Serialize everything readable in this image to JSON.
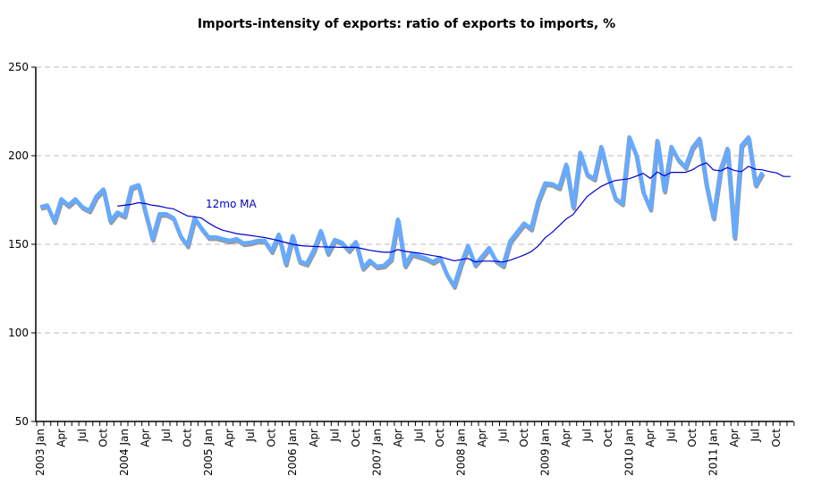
{
  "chart_data": {
    "type": "line",
    "title": "Imports-intensity of exports: ratio of exports to imports, %",
    "xlabel": "",
    "ylabel": "",
    "ylim": [
      50,
      250
    ],
    "yticks": [
      50,
      100,
      150,
      200,
      250
    ],
    "grid": "horizontal dashed",
    "legend": "none",
    "annotation": "12mo MA",
    "categories": [
      "2003 Jan",
      "2003 Feb",
      "2003 Mar",
      "2003 Apr",
      "2003 May",
      "2003 Jun",
      "2003 Jul",
      "2003 Aug",
      "2003 Sep",
      "2003 Oct",
      "2003 Nov",
      "2003 Dec",
      "2004 Jan",
      "2004 Feb",
      "2004 Mar",
      "2004 Apr",
      "2004 May",
      "2004 Jun",
      "2004 Jul",
      "2004 Aug",
      "2004 Sep",
      "2004 Oct",
      "2004 Nov",
      "2004 Dec",
      "2005 Jan",
      "2005 Feb",
      "2005 Mar",
      "2005 Apr",
      "2005 May",
      "2005 Jun",
      "2005 Jul",
      "2005 Aug",
      "2005 Sep",
      "2005 Oct",
      "2005 Nov",
      "2005 Dec",
      "2006 Jan",
      "2006 Feb",
      "2006 Mar",
      "2006 Apr",
      "2006 May",
      "2006 Jun",
      "2006 Jul",
      "2006 Aug",
      "2006 Sep",
      "2006 Oct",
      "2006 Nov",
      "2006 Dec",
      "2007 Jan",
      "2007 Feb",
      "2007 Mar",
      "2007 Apr",
      "2007 May",
      "2007 Jun",
      "2007 Jul",
      "2007 Aug",
      "2007 Sep",
      "2007 Oct",
      "2007 Nov",
      "2007 Dec",
      "2008 Jan",
      "2008 Feb",
      "2008 Mar",
      "2008 Apr",
      "2008 May",
      "2008 Jun",
      "2008 Jul",
      "2008 Aug",
      "2008 Sep",
      "2008 Oct",
      "2008 Nov",
      "2008 Dec",
      "2009 Jan",
      "2009 Feb",
      "2009 Mar",
      "2009 Apr",
      "2009 May",
      "2009 Jun",
      "2009 Jul",
      "2009 Aug",
      "2009 Sep",
      "2009 Oct",
      "2009 Nov",
      "2009 Dec",
      "2010 Jan",
      "2010 Feb",
      "2010 Mar",
      "2010 Apr",
      "2010 May",
      "2010 Jun",
      "2010 Jul",
      "2010 Aug",
      "2010 Sep",
      "2010 Oct",
      "2010 Nov",
      "2010 Dec",
      "2011 Jan",
      "2011 Feb",
      "2011 Mar",
      "2011 Apr",
      "2011 May",
      "2011 Jun",
      "2011 Jul",
      "2011 Aug",
      "2011 Sep",
      "2011 Oct",
      "2011 Nov",
      "2011 Dec"
    ],
    "xtick_labels": [
      "2003 Jan",
      "Apr",
      "Jul",
      "Oct",
      "2004 Jan",
      "Apr",
      "Jul",
      "Oct",
      "2005 Jan",
      "Apr",
      "Jul",
      "Oct",
      "2006 Jan",
      "Apr",
      "Jul",
      "Oct",
      "2007 Jan",
      "Apr",
      "Jul",
      "Oct",
      "2008 Jan",
      "Apr",
      "Jul",
      "Oct",
      "2009 Jan",
      "Apr",
      "Jul",
      "Oct",
      "2010 Jan",
      "Apr",
      "Jul",
      "Oct",
      "2011 Jan",
      "Apr",
      "Jul",
      "Oct"
    ],
    "series": [
      {
        "color": "#66aaff",
        "values": [
          171,
          172,
          163,
          175.5,
          172,
          175.5,
          171,
          169,
          177,
          181,
          163,
          168,
          166,
          182,
          183.5,
          168,
          153,
          167,
          167,
          164.8,
          154.7,
          149.3,
          164.8,
          159,
          154,
          154,
          153,
          152,
          153,
          150.5,
          151,
          152,
          152,
          146,
          155.5,
          139,
          154.7,
          140.4,
          139,
          146.6,
          157.5,
          145,
          152.5,
          151,
          146.6,
          151.3,
          136.6,
          140.8,
          137.4,
          138,
          141.6,
          164,
          138,
          144.6,
          143.3,
          142,
          140,
          142.4,
          133,
          126.4,
          139,
          149,
          138.5,
          143,
          148,
          140.7,
          138,
          151.7,
          156.7,
          161.8,
          158.8,
          174.4,
          184.5,
          184,
          182,
          195,
          171,
          201.7,
          189.4,
          187,
          205,
          188.6,
          176,
          173,
          210.4,
          200.3,
          179.4,
          170,
          208.4,
          180.2,
          205,
          197.8,
          193.6,
          204.5,
          209.6,
          183.6,
          165,
          192,
          204,
          154,
          205.7,
          210.4,
          183.6,
          190.6,
          null,
          null,
          null,
          null
        ]
      },
      {
        "name": "12mo MA",
        "color": "#0000cc",
        "values": [
          null,
          null,
          null,
          null,
          null,
          null,
          null,
          null,
          null,
          null,
          null,
          171.5,
          172,
          172.5,
          173.5,
          173,
          172,
          171.5,
          170.6,
          170,
          168,
          166,
          165.5,
          164.8,
          162,
          159.7,
          158,
          157,
          156,
          155.5,
          155,
          154.4,
          153.8,
          153,
          152,
          151,
          150,
          149.3,
          149,
          148.8,
          148.6,
          148.5,
          148.4,
          148.3,
          148.3,
          148.3,
          147.5,
          146.6,
          146,
          145.5,
          145.5,
          147,
          146,
          145.5,
          145,
          144.3,
          143.6,
          143,
          141.8,
          140.7,
          141.3,
          142,
          140,
          140.5,
          140.5,
          140.4,
          140,
          141,
          142.4,
          144,
          145.8,
          149,
          153.7,
          156.7,
          160.5,
          164.3,
          166.8,
          172,
          177,
          180,
          182.7,
          184.5,
          186,
          186.5,
          187,
          188.5,
          190,
          187.2,
          190.8,
          188.6,
          190.6,
          190.6,
          190.6,
          192,
          194.5,
          196,
          192,
          191.4,
          193.3,
          191.6,
          191,
          194,
          192.3,
          192,
          191,
          190.3,
          188.3,
          188.3
        ]
      }
    ]
  }
}
